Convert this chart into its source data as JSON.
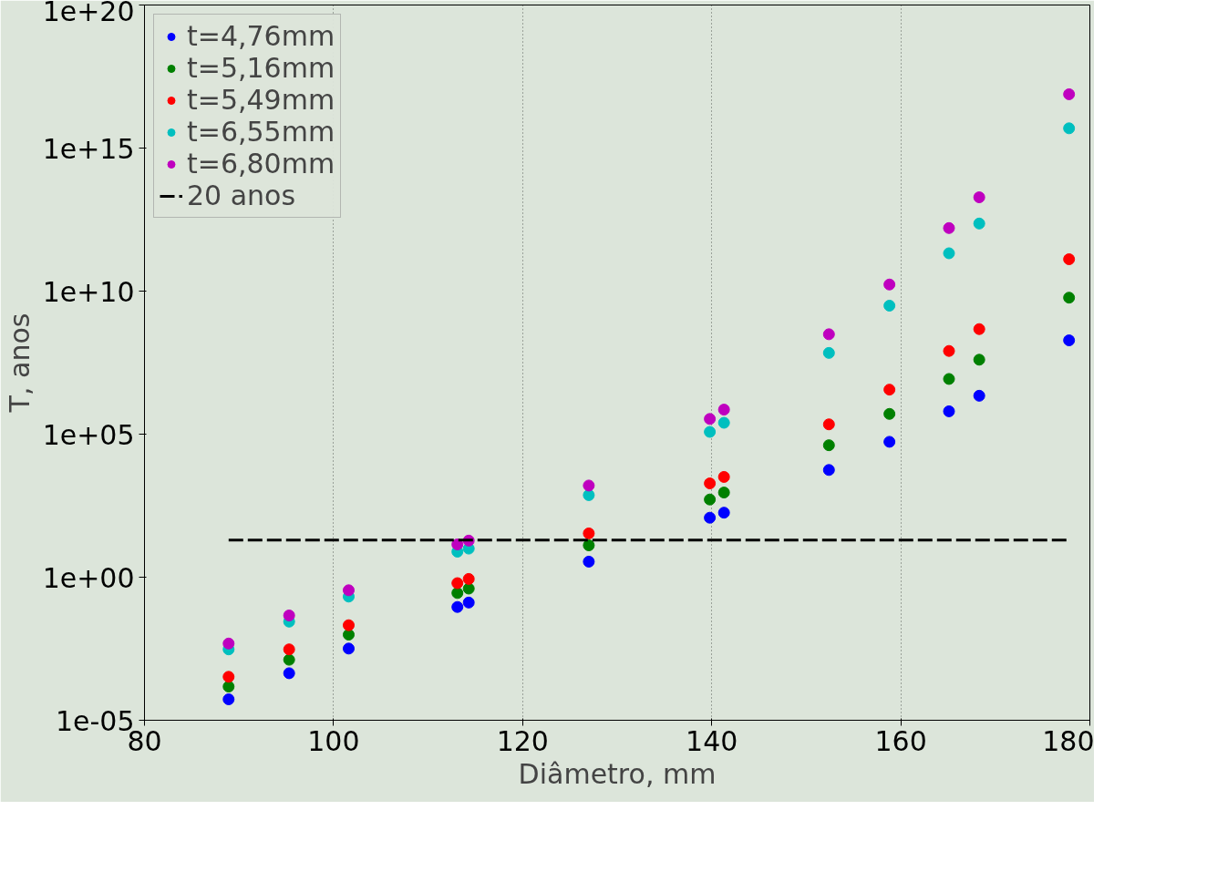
{
  "chart_data": {
    "type": "scatter",
    "xlabel": "Diâmetro, mm",
    "ylabel": "T, anos",
    "log": "y",
    "grid": "x",
    "legend": "top left",
    "marker": "circle",
    "x": [
      88.9,
      95.3,
      101.6,
      113.1,
      114.3,
      127,
      139.8,
      141.3,
      152.4,
      158.8,
      165.1,
      168.3,
      177.8
    ],
    "xlim": [
      80,
      180
    ],
    "xticks": [
      80,
      100,
      120,
      140,
      160,
      180
    ],
    "ylim": [
      1e-05,
      1e+20
    ],
    "yticks": [
      {
        "value": 1e-05,
        "label": "1e-05"
      },
      {
        "value": 1,
        "label": "1e+00"
      },
      {
        "value": 100000.0,
        "label": "1e+05"
      },
      {
        "value": 10000000000.0,
        "label": "1e+10"
      },
      {
        "value": 1000000000000000.0,
        "label": "1e+15"
      },
      {
        "value": 1e+20,
        "label": "1e+20"
      }
    ],
    "series": [
      {
        "name": "t=4,76mm",
        "color": "#0000ff",
        "values": [
          5.4e-05,
          0.00044,
          0.0032,
          0.091,
          0.13,
          3.5,
          120,
          180,
          5600,
          54000.0,
          630000.0,
          2200000.0,
          190000000.0
        ]
      },
      {
        "name": "t=5,16mm",
        "color": "#008000",
        "values": [
          0.00015,
          0.0013,
          0.0098,
          0.28,
          0.4,
          13,
          520,
          910,
          41000.0,
          510000.0,
          8500000.0,
          40000000.0,
          5900000000.0
        ]
      },
      {
        "name": "t=5,49mm",
        "color": "#ff0000",
        "values": [
          0.00033,
          0.003,
          0.021,
          0.62,
          0.87,
          34,
          1900,
          3200,
          220000.0,
          3600000.0,
          81000000.0,
          470000000.0,
          130000000000.0
        ]
      },
      {
        "name": "t=6,55mm",
        "color": "#00bfbf",
        "values": [
          0.003,
          0.028,
          0.21,
          7.8,
          10,
          740,
          120000.0,
          250000.0,
          69000000.0,
          3100000000.0,
          210000000000.0,
          2300000000000.0,
          4900000000000000.0
        ]
      },
      {
        "name": "t=6,80mm",
        "color": "#bf00bf",
        "values": [
          0.0048,
          0.046,
          0.35,
          14,
          19,
          1600,
          340000.0,
          720000.0,
          310000000.0,
          17000000000.0,
          1600000000000.0,
          19000000000000.0,
          7.6e+16
        ]
      },
      {
        "name": "20 anos",
        "type": "line",
        "marker": "none",
        "line_style": "dashed",
        "color": "#000000",
        "x": [
          88.9,
          177.8
        ],
        "values": [
          20,
          20
        ]
      }
    ]
  }
}
